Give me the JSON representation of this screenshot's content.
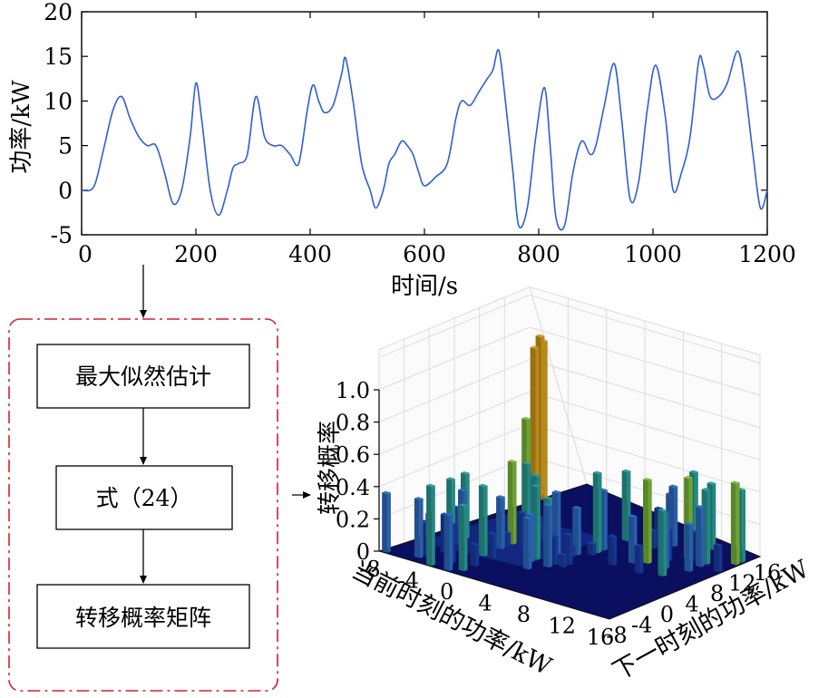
{
  "top_chart": {
    "ylabel": "功率/kW",
    "xlabel": "时间/s",
    "xticks": [
      "0",
      "200",
      "400",
      "600",
      "800",
      "1000",
      "1200"
    ],
    "yticks": [
      "-5",
      "0",
      "5",
      "10",
      "15",
      "20"
    ],
    "xlim": [
      0,
      1200
    ],
    "ylim": [
      -5,
      20
    ],
    "line_color": "#2f5fd0"
  },
  "flow": {
    "box1": "最大似然估计",
    "box2": "式（24）",
    "box3": "转移概率矩阵",
    "frame_color": "#d22030"
  },
  "bar3d": {
    "zlabel": "转移概率",
    "xlabel": "当前时刻的功率/kW",
    "ylabel": "下一时刻的功率/kW",
    "zticks": [
      "0",
      "0.2",
      "0.4",
      "0.6",
      "0.8",
      "1.0"
    ],
    "xticks": [
      "-8",
      "-4",
      "0",
      "4",
      "8",
      "12",
      "16"
    ],
    "yticks": [
      "-8",
      "-4",
      "0",
      "4",
      "8",
      "12",
      "16"
    ]
  },
  "chart_data": {
    "type": "line",
    "title": "",
    "xlabel": "时间/s",
    "ylabel": "功率/kW",
    "xlim": [
      0,
      1200
    ],
    "ylim": [
      -5,
      20
    ],
    "grid": false,
    "series": [
      {
        "x": [
          0,
          15,
          25,
          40,
          55,
          70,
          85,
          100,
          115,
          130,
          145,
          160,
          175,
          190,
          200,
          210,
          225,
          240,
          255,
          265,
          275,
          290,
          305,
          320,
          335,
          350,
          365,
          380,
          395,
          405,
          415,
          425,
          440,
          455,
          462,
          475,
          490,
          505,
          515,
          528,
          538,
          548,
          560,
          570,
          580,
          590,
          600,
          620,
          640,
          655,
          665,
          680,
          695,
          710,
          720,
          730,
          740,
          755,
          765,
          780,
          795,
          810,
          820,
          830,
          845,
          860,
          875,
          890,
          900,
          915,
          932,
          945,
          960,
          975,
          990,
          1005,
          1022,
          1035,
          1050,
          1065,
          1080,
          1088,
          1100,
          1115,
          1130,
          1148,
          1160,
          1175,
          1188,
          1200
        ],
        "y": [
          0,
          0,
          1,
          5,
          9,
          10.5,
          8,
          6,
          5,
          5,
          2,
          -1.5,
          0,
          6,
          12,
          8,
          0,
          -2.8,
          0,
          2.5,
          3,
          4,
          10.5,
          6,
          5,
          5,
          4,
          3,
          9,
          11.8,
          10,
          8.7,
          9.5,
          13,
          14.8,
          10,
          3,
          0,
          -2,
          0,
          3,
          4,
          5.5,
          5,
          4,
          2,
          0.5,
          1.5,
          3,
          8,
          10,
          9.5,
          11,
          12.5,
          13.5,
          15.7,
          11,
          2,
          -4,
          -2,
          6,
          11.5,
          5,
          -3,
          -4,
          2,
          5.5,
          4,
          5,
          9.5,
          14.2,
          8,
          -1,
          1,
          9,
          14,
          8,
          0,
          2,
          6,
          14.5,
          14,
          10.5,
          10.5,
          12,
          15.6,
          12,
          4,
          -2,
          0
        ]
      }
    ]
  }
}
